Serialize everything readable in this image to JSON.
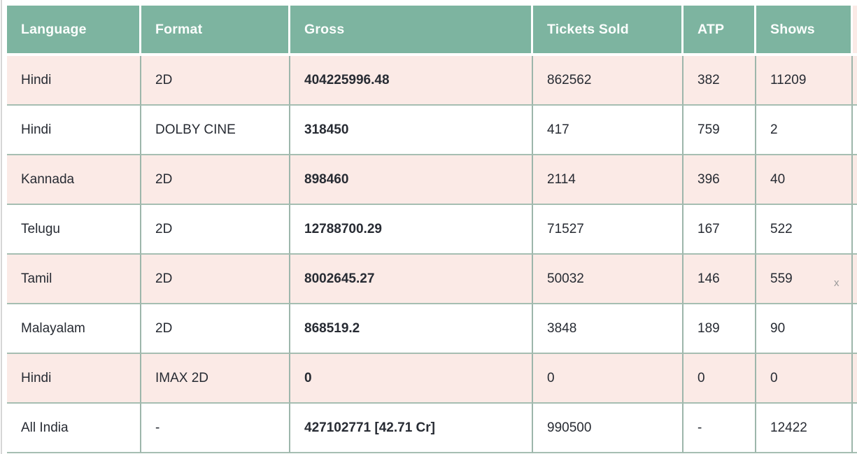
{
  "page": {
    "close_x": "x"
  },
  "colors": {
    "header_bg": "#7db4a0",
    "header_text": "#ffffff",
    "row_bg": "#ffffff",
    "row_alt_bg": "#fbeae6",
    "cell_border": "#9db6ab",
    "text": "#272b33"
  },
  "table": {
    "columns": [
      "Language",
      "Format",
      "Gross",
      "Tickets Sold",
      "ATP",
      "Shows"
    ],
    "rows": [
      [
        "Hindi",
        "2D",
        "404225996.48",
        "862562",
        "382",
        "11209"
      ],
      [
        "Hindi",
        "DOLBY CINE",
        "318450",
        "417",
        "759",
        "2"
      ],
      [
        "Kannada",
        "2D",
        "898460",
        "2114",
        "396",
        "40"
      ],
      [
        "Telugu",
        "2D",
        "12788700.29",
        "71527",
        "167",
        "522"
      ],
      [
        "Tamil",
        "2D",
        "8002645.27",
        "50032",
        "146",
        "559"
      ],
      [
        "Malayalam",
        "2D",
        "868519.2",
        "3848",
        "189",
        "90"
      ],
      [
        "Hindi",
        "IMAX 2D",
        "0",
        "0",
        "0",
        "0"
      ],
      [
        "All India",
        "-",
        "427102771 [42.71 Cr]",
        "990500",
        "-",
        "12422"
      ]
    ]
  }
}
